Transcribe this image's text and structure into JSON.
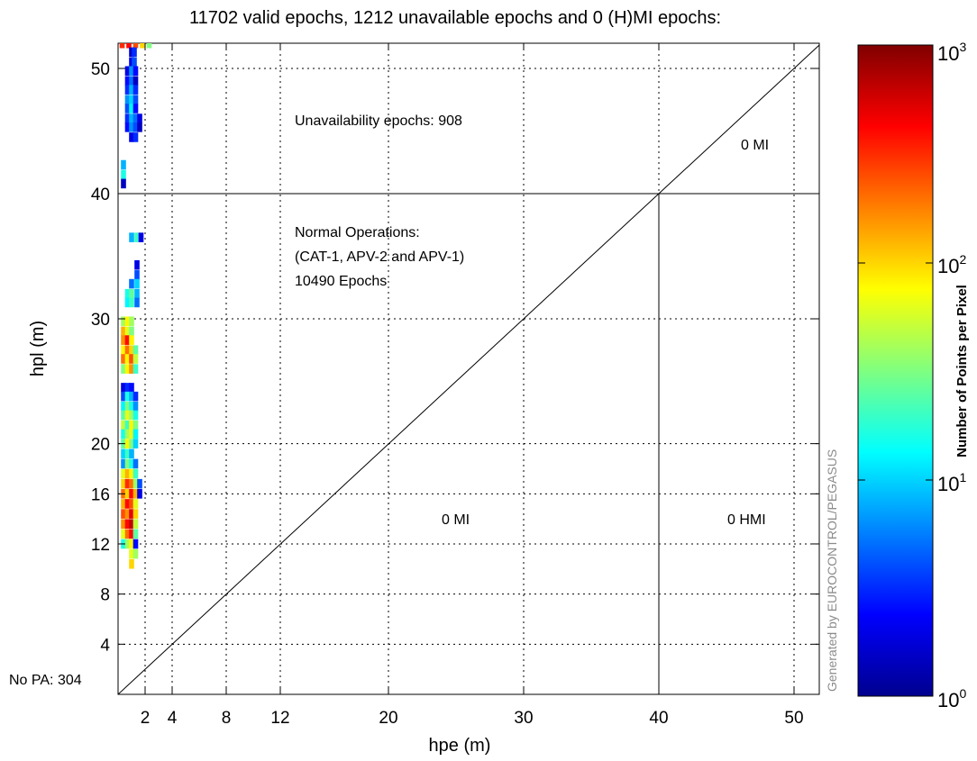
{
  "chart_data": {
    "type": "heatmap",
    "title": "11702 valid epochs, 1212 unavailable epochs and 0 (H)MI epochs:",
    "xlabel": "hpe (m)",
    "ylabel": "hpl (m)",
    "xlim": [
      0,
      52
    ],
    "ylim": [
      0,
      52
    ],
    "x_ticks": [
      2,
      4,
      8,
      12,
      20,
      30,
      40,
      50
    ],
    "y_ticks": [
      4,
      8,
      12,
      16,
      20,
      30,
      40,
      50
    ],
    "grid": true,
    "scale_note": "piecewise axis scale: 0-20 m stretched, 20-52 m compressed (Stanford-ESA integrity diagram)",
    "reference_lines": {
      "diagonal": "hpl = hpe",
      "alert_limit": 40
    },
    "annotations": {
      "unavailability": "Unavailability epochs: 908",
      "normal_ops_line1": "Normal Operations:",
      "normal_ops_line2": "(CAT-1, APV-2 and APV-1)",
      "normal_ops_line3": "10490 Epochs",
      "mi_upper": "0 MI",
      "mi_lower": "0 MI",
      "hmi": "0 HMI",
      "no_pa": "No PA: 304"
    },
    "credit": "Generated by EUROCONTROL/PEGASUS",
    "colorbar": {
      "label": "Number of Points per Pixel",
      "scale": "log",
      "base": "10",
      "min_exp": "0",
      "mid1_exp": "1",
      "mid2_exp": "2",
      "max_exp": "3",
      "colormap": "jet"
    },
    "cells": [
      [
        0.3,
        52.0,
        2.5
      ],
      [
        0.8,
        52.0,
        2.6
      ],
      [
        1.3,
        52.0,
        2.4
      ],
      [
        1.8,
        52.0,
        2.0
      ],
      [
        2.3,
        52.0,
        1.5
      ],
      [
        1.0,
        51.3,
        0.2
      ],
      [
        1.2,
        51.3,
        0.5
      ],
      [
        1.0,
        50.5,
        0.3
      ],
      [
        1.2,
        50.5,
        0.6
      ],
      [
        0.7,
        49.8,
        0.3
      ],
      [
        1.0,
        49.8,
        0.8
      ],
      [
        1.3,
        49.8,
        0.4
      ],
      [
        0.7,
        49.0,
        0.4
      ],
      [
        1.0,
        49.0,
        0.7
      ],
      [
        1.3,
        49.0,
        0.2
      ],
      [
        0.7,
        48.3,
        0.5
      ],
      [
        1.0,
        48.3,
        0.9
      ],
      [
        1.3,
        48.3,
        0.5
      ],
      [
        0.7,
        47.5,
        0.8
      ],
      [
        1.0,
        47.5,
        1.0
      ],
      [
        1.3,
        47.5,
        0.6
      ],
      [
        0.7,
        46.8,
        0.6
      ],
      [
        1.0,
        46.8,
        1.1
      ],
      [
        1.3,
        46.8,
        0.4
      ],
      [
        0.7,
        46.0,
        0.5
      ],
      [
        1.0,
        46.0,
        0.9
      ],
      [
        1.3,
        46.0,
        0.7
      ],
      [
        1.6,
        46.0,
        0.3
      ],
      [
        0.7,
        45.3,
        0.4
      ],
      [
        1.0,
        45.3,
        0.8
      ],
      [
        1.3,
        45.3,
        0.6
      ],
      [
        1.6,
        45.3,
        0.2
      ],
      [
        1.0,
        44.5,
        0.3
      ],
      [
        1.3,
        44.5,
        0.5
      ],
      [
        0.4,
        42.3,
        0.9
      ],
      [
        0.4,
        41.5,
        1.2
      ],
      [
        0.4,
        40.8,
        0.2
      ],
      [
        1.0,
        36.5,
        0.9
      ],
      [
        1.4,
        36.5,
        1.3
      ],
      [
        1.7,
        36.5,
        0.3
      ],
      [
        1.4,
        34.3,
        0.3
      ],
      [
        1.4,
        33.5,
        0.6
      ],
      [
        1.0,
        32.8,
        0.7
      ],
      [
        1.4,
        32.8,
        1.0
      ],
      [
        0.7,
        32.0,
        1.2
      ],
      [
        1.0,
        32.0,
        1.4
      ],
      [
        1.4,
        32.0,
        0.9
      ],
      [
        0.7,
        31.3,
        1.1
      ],
      [
        1.0,
        31.3,
        1.3
      ],
      [
        1.4,
        31.3,
        0.7
      ],
      [
        0.4,
        29.8,
        1.6
      ],
      [
        0.7,
        29.8,
        1.9
      ],
      [
        1.0,
        29.8,
        1.6
      ],
      [
        0.4,
        29.0,
        2.1
      ],
      [
        0.7,
        29.0,
        1.8
      ],
      [
        1.0,
        29.0,
        1.5
      ],
      [
        0.4,
        28.3,
        2.2
      ],
      [
        0.7,
        28.3,
        2.6
      ],
      [
        1.0,
        28.3,
        1.9
      ],
      [
        0.4,
        27.5,
        1.9
      ],
      [
        0.7,
        27.5,
        2.3
      ],
      [
        1.0,
        27.5,
        2.0
      ],
      [
        1.3,
        27.5,
        1.4
      ],
      [
        0.4,
        26.8,
        2.3
      ],
      [
        0.7,
        26.8,
        1.9
      ],
      [
        1.0,
        26.8,
        2.4
      ],
      [
        1.3,
        26.8,
        1.7
      ],
      [
        0.4,
        26.0,
        1.5
      ],
      [
        0.7,
        26.0,
        1.9
      ],
      [
        1.0,
        26.0,
        2.2
      ],
      [
        1.3,
        26.0,
        1.3
      ],
      [
        0.4,
        24.5,
        0.3
      ],
      [
        0.7,
        24.5,
        0.5
      ],
      [
        1.0,
        24.5,
        0.4
      ],
      [
        0.4,
        23.8,
        0.6
      ],
      [
        0.7,
        23.8,
        1.2
      ],
      [
        1.0,
        23.8,
        0.9
      ],
      [
        1.3,
        23.8,
        0.5
      ],
      [
        0.4,
        23.0,
        1.1
      ],
      [
        0.7,
        23.0,
        1.5
      ],
      [
        1.0,
        23.0,
        1.2
      ],
      [
        1.3,
        23.0,
        0.8
      ],
      [
        0.4,
        22.3,
        1.4
      ],
      [
        0.7,
        22.3,
        1.8
      ],
      [
        1.0,
        22.3,
        1.6
      ],
      [
        1.3,
        22.3,
        1.2
      ],
      [
        0.4,
        21.5,
        1.7
      ],
      [
        0.7,
        21.5,
        1.3
      ],
      [
        1.0,
        21.5,
        1.9
      ],
      [
        1.3,
        21.5,
        1.5
      ],
      [
        0.4,
        20.8,
        1.2
      ],
      [
        0.7,
        20.8,
        1.6
      ],
      [
        1.0,
        20.8,
        1.8
      ],
      [
        1.3,
        20.8,
        1.1
      ],
      [
        0.4,
        20.0,
        1.4
      ],
      [
        0.7,
        20.0,
        1.9
      ],
      [
        1.0,
        20.0,
        1.5
      ],
      [
        1.3,
        20.0,
        1.0
      ],
      [
        0.4,
        19.2,
        1.0
      ],
      [
        0.7,
        19.2,
        1.3
      ],
      [
        1.0,
        19.2,
        0.9
      ],
      [
        0.4,
        18.4,
        0.8
      ],
      [
        0.7,
        18.4,
        1.5
      ],
      [
        1.0,
        18.4,
        1.2
      ],
      [
        1.3,
        18.4,
        0.7
      ],
      [
        0.4,
        17.6,
        1.8
      ],
      [
        0.7,
        17.6,
        2.1
      ],
      [
        1.0,
        17.6,
        1.9
      ],
      [
        1.3,
        17.6,
        1.3
      ],
      [
        0.4,
        16.8,
        2.0
      ],
      [
        0.7,
        16.8,
        2.5
      ],
      [
        1.0,
        16.8,
        2.3
      ],
      [
        1.3,
        16.8,
        1.6
      ],
      [
        1.6,
        16.8,
        0.6
      ],
      [
        0.4,
        16.0,
        2.3
      ],
      [
        0.7,
        16.0,
        2.0
      ],
      [
        1.0,
        16.0,
        2.6
      ],
      [
        1.3,
        16.0,
        2.1
      ],
      [
        1.6,
        16.0,
        0.3
      ],
      [
        0.4,
        15.2,
        2.1
      ],
      [
        0.7,
        15.2,
        2.6
      ],
      [
        1.0,
        15.2,
        2.4
      ],
      [
        1.3,
        15.2,
        1.8
      ],
      [
        0.4,
        14.4,
        2.4
      ],
      [
        0.7,
        14.4,
        2.2
      ],
      [
        1.0,
        14.4,
        2.7
      ],
      [
        1.3,
        14.4,
        2.0
      ],
      [
        0.4,
        13.6,
        2.2
      ],
      [
        0.7,
        13.6,
        2.6
      ],
      [
        1.0,
        13.6,
        2.8
      ],
      [
        1.3,
        13.6,
        1.7
      ],
      [
        0.4,
        12.8,
        1.8
      ],
      [
        0.7,
        12.8,
        2.3
      ],
      [
        1.0,
        12.8,
        2.6
      ],
      [
        1.3,
        12.8,
        1.4
      ],
      [
        0.4,
        12.0,
        1.2
      ],
      [
        0.7,
        12.0,
        1.6
      ],
      [
        1.0,
        12.0,
        1.9
      ],
      [
        1.3,
        12.0,
        0.4
      ],
      [
        1.0,
        11.2,
        1.8
      ],
      [
        1.3,
        11.2,
        1.6
      ],
      [
        1.0,
        10.4,
        2.0
      ]
    ]
  }
}
